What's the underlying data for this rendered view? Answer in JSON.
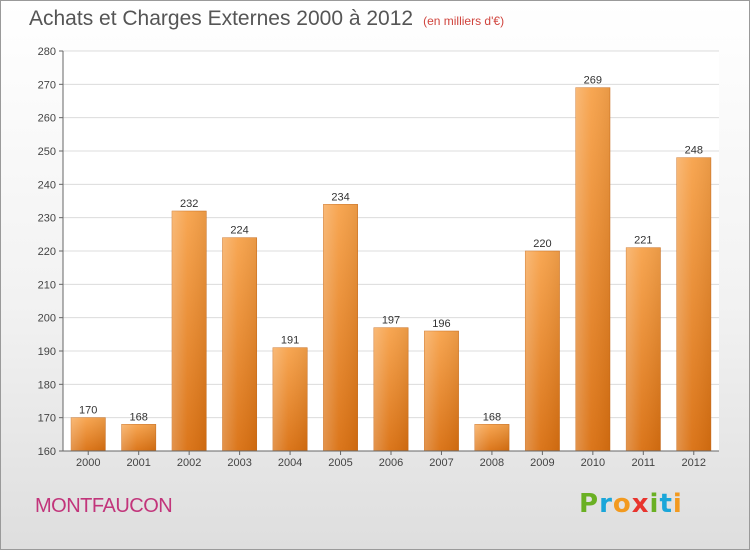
{
  "title": "Achats et Charges Externes 2000 à 2012",
  "subtitle": "(en milliers d'€)",
  "commune": "MONTFAUCON",
  "logo": {
    "letters": [
      "P",
      "r",
      "o",
      "x",
      "i",
      "t",
      "i"
    ],
    "colors": [
      "#6ab023",
      "#1aa6d9",
      "#f29a1f",
      "#e8342e",
      "#6ab023",
      "#1aa6d9",
      "#f29a1f"
    ]
  },
  "chart_data": {
    "type": "bar",
    "categories": [
      "2000",
      "2001",
      "2002",
      "2003",
      "2004",
      "2005",
      "2006",
      "2007",
      "2008",
      "2009",
      "2010",
      "2011",
      "2012"
    ],
    "values": [
      170,
      168,
      232,
      224,
      191,
      234,
      197,
      196,
      168,
      220,
      269,
      221,
      248
    ],
    "ylim": [
      160,
      280
    ],
    "yticks": [
      160,
      170,
      180,
      190,
      200,
      210,
      220,
      230,
      240,
      250,
      260,
      270,
      280
    ],
    "grid": true,
    "bar_color": "#f29a3e"
  }
}
